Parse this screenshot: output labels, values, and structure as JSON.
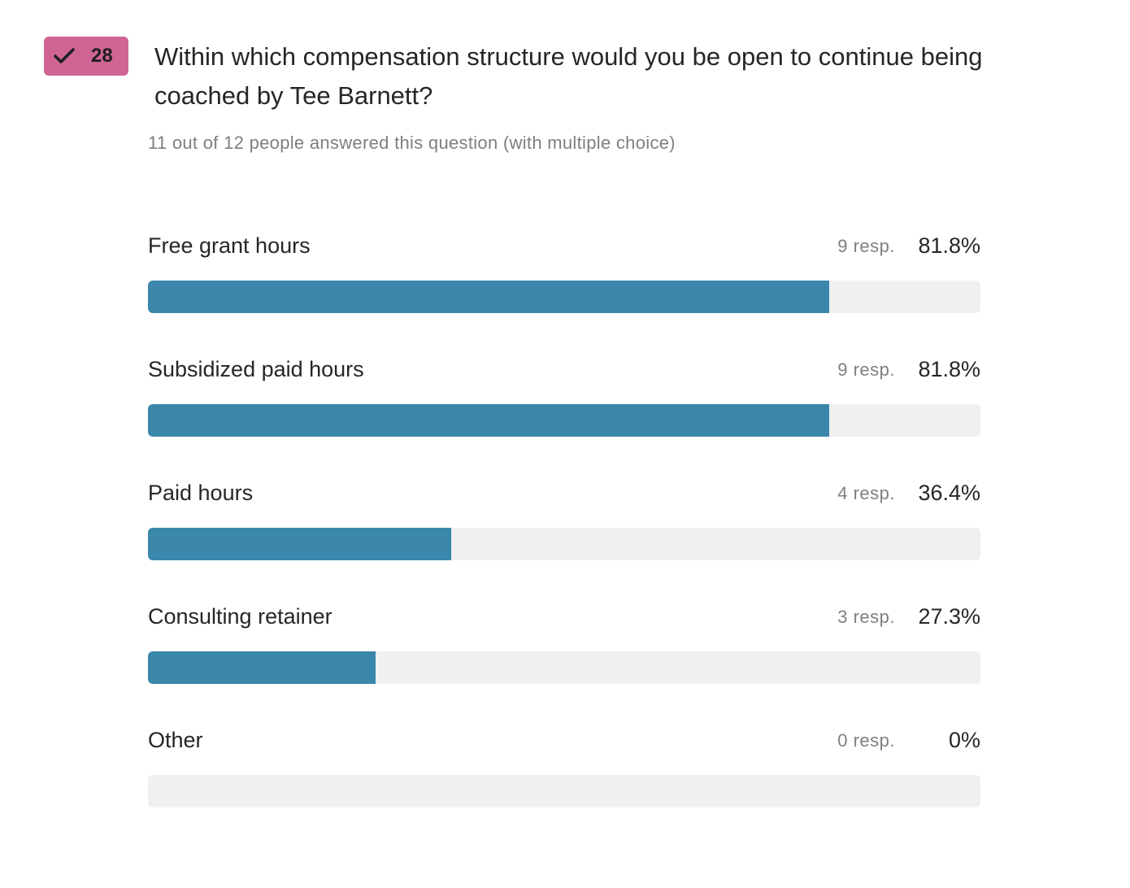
{
  "badge": {
    "icon": "checkmark-icon",
    "number": "28",
    "color": "#cf6495"
  },
  "question": "Within which compensation structure would you be open to continue being coached by Tee Barnett?",
  "summary": "11 out of 12 people answered this question (with multiple choice)",
  "colors": {
    "bar_fill": "#3b86ab",
    "bar_track": "#f0f0f0",
    "muted_text": "#7f7f7f"
  },
  "chart_data": {
    "type": "bar",
    "orientation": "horizontal",
    "title": "Within which compensation structure would you be open to continue being coached by Tee Barnett?",
    "subtitle": "11 out of 12 people answered this question (with multiple choice)",
    "categories": [
      "Free grant hours",
      "Subsidized paid hours",
      "Paid hours",
      "Consulting retainer",
      "Other"
    ],
    "responses": [
      9,
      9,
      4,
      3,
      0
    ],
    "response_labels": [
      "9 resp.",
      "9 resp.",
      "4 resp.",
      "3 resp.",
      "0 resp."
    ],
    "percent_labels": [
      "81.8%",
      "81.8%",
      "36.4%",
      "27.3%",
      "0%"
    ],
    "values": [
      81.8,
      81.8,
      36.4,
      27.3,
      0
    ],
    "xlim": [
      0,
      100
    ],
    "grid": false,
    "legend": "none"
  }
}
